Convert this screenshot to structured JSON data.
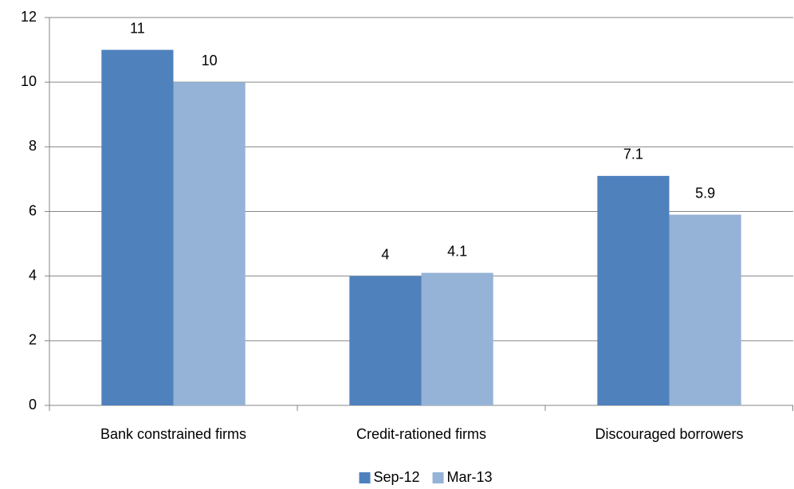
{
  "chart_data": {
    "type": "bar",
    "categories": [
      "Bank constrained firms",
      "Credit-rationed firms",
      "Discouraged borrowers"
    ],
    "series": [
      {
        "name": "Sep-12",
        "color": "#4f81bd",
        "values": [
          11,
          4,
          7.1
        ]
      },
      {
        "name": "Mar-13",
        "color": "#95b3d7",
        "values": [
          10,
          4.1,
          5.9
        ]
      }
    ],
    "ylim": [
      0,
      12
    ],
    "yticks": [
      0,
      2,
      4,
      6,
      8,
      10,
      12
    ],
    "grid": true,
    "legend": "bottom"
  }
}
